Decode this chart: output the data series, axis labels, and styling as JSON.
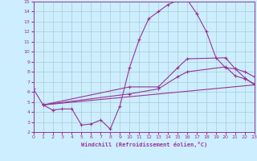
{
  "bg_color": "#cceeff",
  "grid_color": "#aacccc",
  "line_color": "#993399",
  "xlabel": "Windchill (Refroidissement éolien,°C)",
  "xlim": [
    0,
    23
  ],
  "ylim": [
    2,
    15
  ],
  "xticks": [
    0,
    1,
    2,
    3,
    4,
    5,
    6,
    7,
    8,
    9,
    10,
    11,
    12,
    13,
    14,
    15,
    16,
    17,
    18,
    19,
    20,
    21,
    22,
    23
  ],
  "yticks": [
    2,
    3,
    4,
    5,
    6,
    7,
    8,
    9,
    10,
    11,
    12,
    13,
    14,
    15
  ],
  "curve1_x": [
    0,
    1,
    2,
    3,
    4,
    5,
    6,
    7,
    8,
    9,
    10,
    11,
    12,
    13,
    14,
    15,
    16,
    17,
    18,
    19,
    20,
    21,
    22,
    23
  ],
  "curve1_y": [
    6.3,
    4.7,
    4.2,
    4.3,
    4.3,
    2.7,
    2.8,
    3.2,
    2.3,
    4.6,
    8.4,
    11.2,
    13.3,
    14.0,
    14.7,
    15.1,
    15.2,
    13.8,
    12.0,
    9.4,
    8.4,
    8.3,
    7.4,
    6.7
  ],
  "curve2_x": [
    1,
    10,
    13,
    15,
    16,
    20,
    21,
    22,
    23
  ],
  "curve2_y": [
    4.7,
    6.5,
    6.5,
    8.4,
    9.3,
    9.4,
    8.3,
    8.0,
    7.5
  ],
  "curve3_x": [
    1,
    10,
    13,
    15,
    16,
    20,
    21,
    22,
    23
  ],
  "curve3_y": [
    4.7,
    5.8,
    6.3,
    7.5,
    8.0,
    8.5,
    7.6,
    7.3,
    6.8
  ],
  "curve4_x": [
    1,
    23
  ],
  "curve4_y": [
    4.7,
    6.7
  ]
}
